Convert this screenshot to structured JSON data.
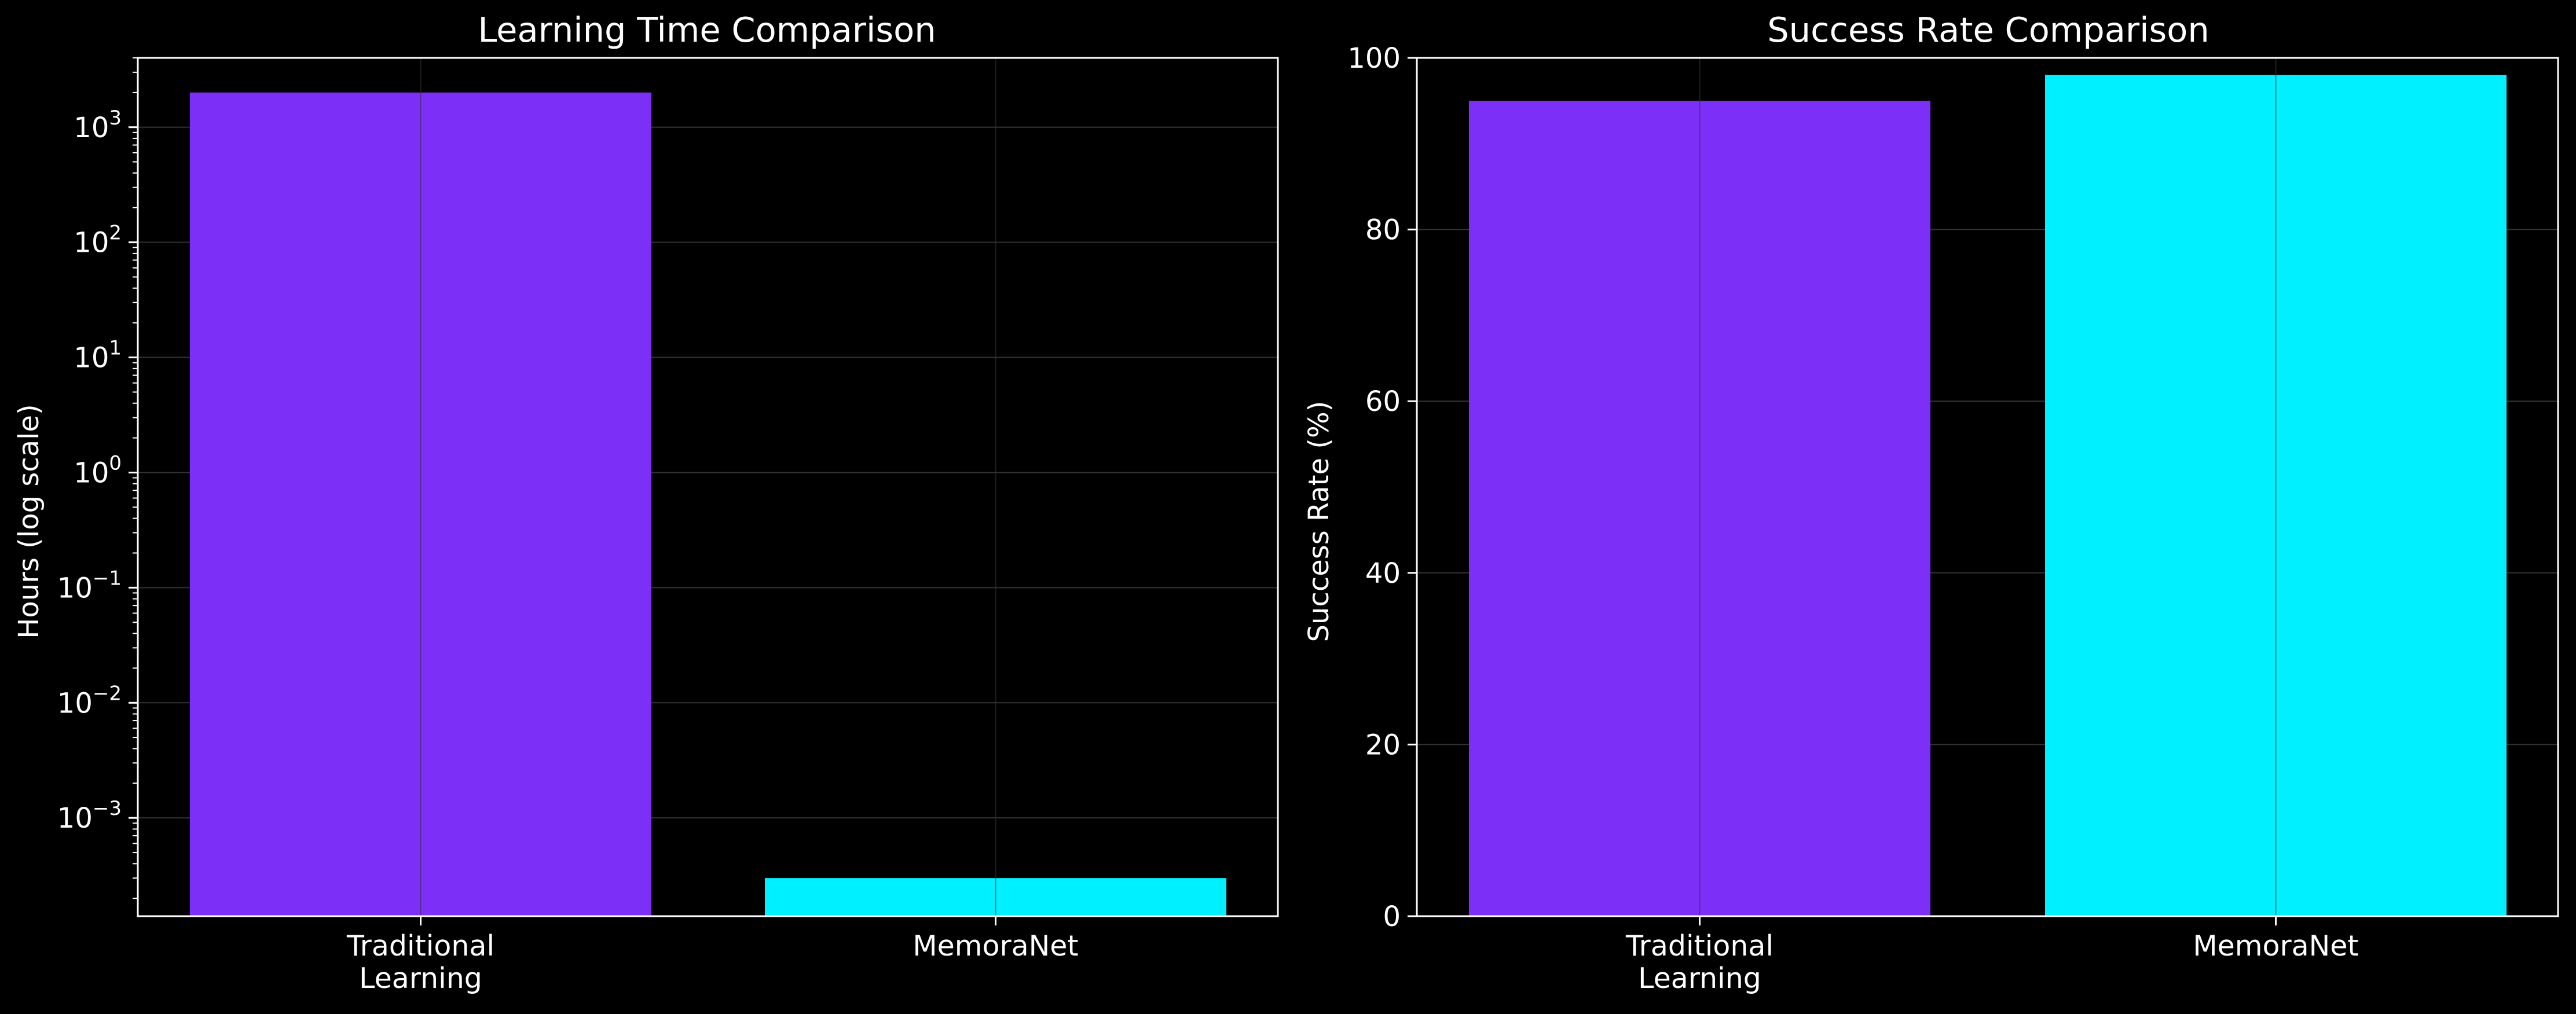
{
  "figure": {
    "background": "#000000",
    "axis_color": "#ffffff",
    "grid_color": "#333333"
  },
  "chart_data": [
    {
      "type": "bar",
      "title": "Learning Time Comparison",
      "xlabel": "",
      "ylabel": "Hours (log scale)",
      "y_scale": "log",
      "ylim": [
        0.00014,
        4000
      ],
      "yticks": [
        0.001,
        0.01,
        0.1,
        1,
        10,
        100,
        1000
      ],
      "ytick_labels": [
        {
          "base": "10",
          "exp": "−3"
        },
        {
          "base": "10",
          "exp": "−2"
        },
        {
          "base": "10",
          "exp": "−1"
        },
        {
          "base": "10",
          "exp": "0"
        },
        {
          "base": "10",
          "exp": "1"
        },
        {
          "base": "10",
          "exp": "2"
        },
        {
          "base": "10",
          "exp": "3"
        }
      ],
      "categories": [
        {
          "lines": [
            "Traditional",
            "Learning"
          ]
        },
        {
          "lines": [
            "MemoraNet"
          ]
        }
      ],
      "values": [
        2000,
        0.0003
      ],
      "colors": [
        "#7b2ff7",
        "#00f0ff"
      ],
      "grid": true,
      "legend": "none"
    },
    {
      "type": "bar",
      "title": "Success Rate Comparison",
      "xlabel": "",
      "ylabel": "Success Rate (%)",
      "y_scale": "linear",
      "ylim": [
        0,
        100
      ],
      "yticks": [
        0,
        20,
        40,
        60,
        80,
        100
      ],
      "ytick_labels": [
        {
          "base": "0"
        },
        {
          "base": "20"
        },
        {
          "base": "40"
        },
        {
          "base": "60"
        },
        {
          "base": "80"
        },
        {
          "base": "100"
        }
      ],
      "categories": [
        {
          "lines": [
            "Traditional",
            "Learning"
          ]
        },
        {
          "lines": [
            "MemoraNet"
          ]
        }
      ],
      "values": [
        95,
        98
      ],
      "colors": [
        "#7b2ff7",
        "#00f0ff"
      ],
      "grid": true,
      "legend": "none"
    }
  ]
}
